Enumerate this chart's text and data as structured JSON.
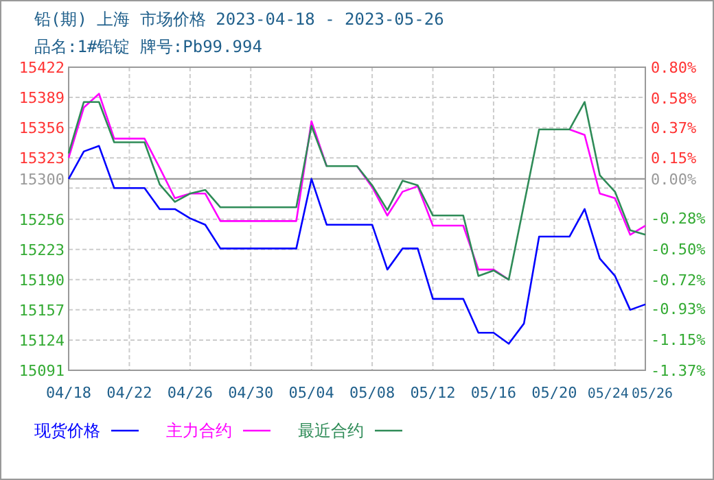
{
  "chart_data": {
    "type": "line",
    "title": "铅(期) 上海 市场价格 2023-04-18 - 2023-05-26",
    "subtitle": "品名:1#铅锭 牌号:Pb99.994",
    "x": [
      "2023-04-18",
      "2023-04-19",
      "2023-04-20",
      "2023-04-21",
      "2023-04-22",
      "2023-04-23",
      "2023-04-24",
      "2023-04-25",
      "2023-04-26",
      "2023-04-27",
      "2023-04-28",
      "2023-04-29",
      "2023-04-30",
      "2023-05-01",
      "2023-05-02",
      "2023-05-03",
      "2023-05-04",
      "2023-05-05",
      "2023-05-06",
      "2023-05-07",
      "2023-05-08",
      "2023-05-09",
      "2023-05-10",
      "2023-05-11",
      "2023-05-12",
      "2023-05-13",
      "2023-05-14",
      "2023-05-15",
      "2023-05-16",
      "2023-05-17",
      "2023-05-18",
      "2023-05-19",
      "2023-05-20",
      "2023-05-21",
      "2023-05-22",
      "2023-05-23",
      "2023-05-24",
      "2023-05-25",
      "2023-05-26"
    ],
    "series": [
      {
        "name": "现货价格",
        "color": "#0000ff",
        "values": [
          15300,
          15330,
          15336,
          15290,
          15290,
          15290,
          15267,
          15267,
          15257,
          15250,
          15224,
          15224,
          15224,
          15224,
          15224,
          15224,
          15300,
          15250,
          15250,
          15250,
          15250,
          15201,
          15224,
          15224,
          15169,
          15169,
          15169,
          15132,
          15132,
          15120,
          15142,
          15237,
          15237,
          15237,
          15267,
          15213,
          15194,
          15157,
          15163
        ]
      },
      {
        "name": "主力合约",
        "color": "#ff00ff",
        "values": [
          15323,
          15378,
          15393,
          15344,
          15344,
          15344,
          15312,
          15279,
          15284,
          15284,
          15254,
          15254,
          15254,
          15254,
          15254,
          15254,
          15363,
          15314,
          null,
          15314,
          15291,
          15260,
          15286,
          15292,
          15249,
          15249,
          15249,
          15201,
          15201,
          15190,
          null,
          null,
          null,
          15354,
          15348,
          15284,
          15279,
          15239,
          15249
        ]
      },
      {
        "name": "最近合约",
        "color": "#2e8b57",
        "values": [
          15328,
          15384,
          15384,
          15340,
          15340,
          15340,
          15294,
          15275,
          15284,
          15288,
          15269,
          15269,
          15269,
          15269,
          15269,
          15269,
          15358,
          15314,
          15314,
          15314,
          15293,
          15266,
          15298,
          15293,
          15260,
          15260,
          15260,
          15194,
          15200,
          15190,
          15272,
          15354,
          15354,
          15354,
          15384,
          15304,
          15286,
          15244,
          15239
        ]
      }
    ],
    "xlim": [
      "2023-04-18",
      "2023-05-26"
    ],
    "xticks": [
      {
        "value": "2023-04-18",
        "label": "04/18"
      },
      {
        "value": "2023-04-22",
        "label": "04/22"
      },
      {
        "value": "2023-04-26",
        "label": "04/26"
      },
      {
        "value": "2023-04-30",
        "label": "04/30"
      },
      {
        "value": "2023-05-04",
        "label": "05/04"
      },
      {
        "value": "2023-05-08",
        "label": "05/08"
      },
      {
        "value": "2023-05-12",
        "label": "05/12"
      },
      {
        "value": "2023-05-16",
        "label": "05/16"
      },
      {
        "value": "2023-05-20",
        "label": "05/20"
      },
      {
        "value": "2023-05-24",
        "label": "05/24"
      },
      {
        "value": "2023-05-26",
        "label": "05/26"
      }
    ],
    "ylim": [
      15091,
      15422
    ],
    "yticks": [
      15091,
      15124,
      15157,
      15190,
      15223,
      15256,
      {
        "value": 15290,
        "label": null
      },
      15300,
      15323,
      15356,
      15389,
      15422
    ],
    "y2lim": [
      -1.37,
      0.8
    ],
    "y2ticks": [
      {
        "value": -1.37,
        "label": "-1.37%"
      },
      {
        "value": -1.15,
        "label": "-1.15%"
      },
      {
        "value": -0.93,
        "label": "-0.93%"
      },
      {
        "value": -0.72,
        "label": "-0.72%"
      },
      {
        "value": -0.5,
        "label": "-0.50%"
      },
      {
        "value": -0.28,
        "label": "-0.28%"
      },
      {
        "value": 0,
        "label": "0.00%"
      },
      {
        "value": 0.15,
        "label": "0.15%"
      },
      {
        "value": 0.37,
        "label": "0.37%"
      },
      {
        "value": 0.58,
        "label": "0.58%"
      },
      {
        "value": 0.8,
        "label": "0.80%"
      }
    ],
    "ref_lines": [
      {
        "axis": "y",
        "value": 15300,
        "color": "#999999"
      }
    ],
    "grid": true,
    "legend": "bottom",
    "marker": "none",
    "line_style": "solid"
  }
}
